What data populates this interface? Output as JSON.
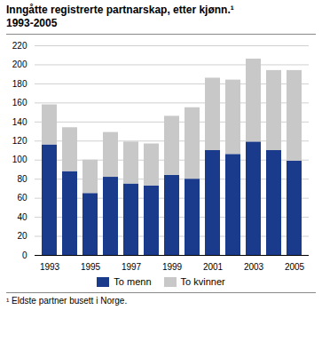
{
  "chart_data": {
    "type": "bar",
    "title": "Inngåtte registrerte partnarskap, etter kjønn.¹",
    "subtitle": "1993-2005",
    "annotations": [
      "¹ Eldste partner busett i Norge."
    ],
    "categories": [
      "1993",
      null,
      "1995",
      null,
      "1997",
      null,
      "1999",
      null,
      "2001",
      null,
      "2003",
      null,
      "2005"
    ],
    "series": [
      {
        "name": "To menn",
        "color": "#1a3a8c",
        "values": [
          116,
          88,
          65,
          82,
          75,
          73,
          84,
          80,
          110,
          106,
          119,
          110,
          99
        ]
      },
      {
        "name": "To kvinner",
        "color": "#c8c8c8",
        "values": [
          42,
          46,
          35,
          47,
          44,
          44,
          62,
          75,
          76,
          78,
          87,
          84,
          95
        ]
      }
    ],
    "stacked": true,
    "ylim": [
      0,
      220
    ],
    "yticks": [
      0,
      20,
      40,
      60,
      80,
      100,
      120,
      140,
      160,
      180,
      200,
      220
    ],
    "grid": true,
    "legend": "bottom"
  }
}
